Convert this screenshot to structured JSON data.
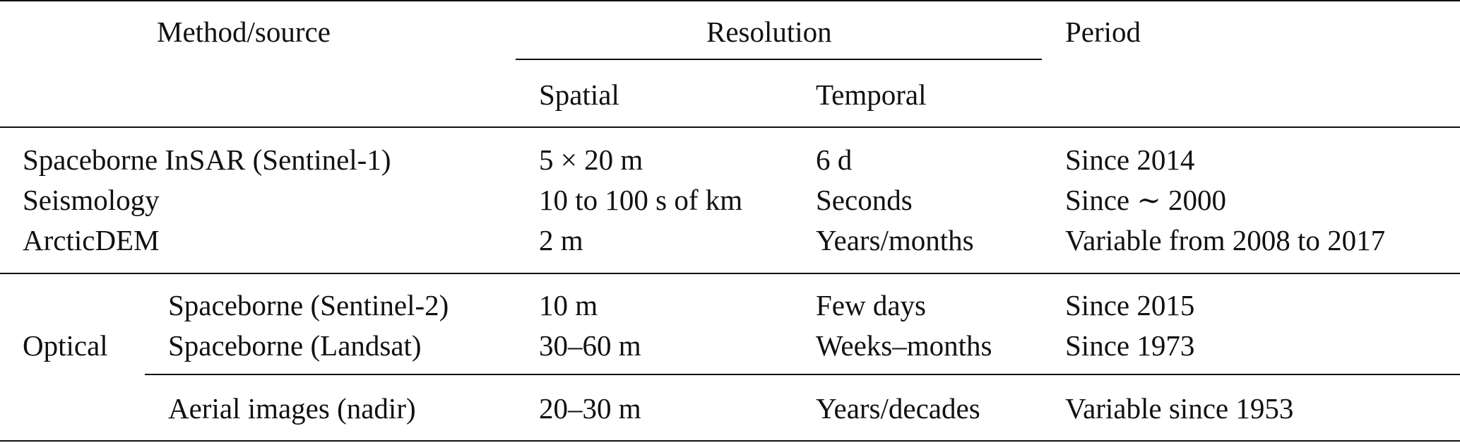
{
  "header": {
    "method_source": "Method/source",
    "resolution": "Resolution",
    "period": "Period",
    "spatial": "Spatial",
    "temporal": "Temporal"
  },
  "rows_group1": [
    {
      "method": "Spaceborne InSAR (Sentinel-1)",
      "spatial": "5 × 20 m",
      "temporal": "6 d",
      "period": "Since 2014"
    },
    {
      "method": "Seismology",
      "spatial": "10 to 100 s of km",
      "temporal": "Seconds",
      "period": "Since ∼ 2000"
    },
    {
      "method": "ArcticDEM",
      "spatial": "2 m",
      "temporal": "Years/months",
      "period": "Variable from 2008 to 2017"
    }
  ],
  "optical_label": "Optical",
  "rows_optical": [
    {
      "method": "Spaceborne (Sentinel-2)",
      "spatial": "10 m",
      "temporal": "Few days",
      "period": "Since 2015"
    },
    {
      "method": "Spaceborne (Landsat)",
      "spatial": "30–60 m",
      "temporal": "Weeks–months",
      "period": "Since 1973"
    },
    {
      "method": "Aerial images (nadir)",
      "spatial": "20–30 m",
      "temporal": "Years/decades",
      "period": "Variable since 1953"
    }
  ]
}
